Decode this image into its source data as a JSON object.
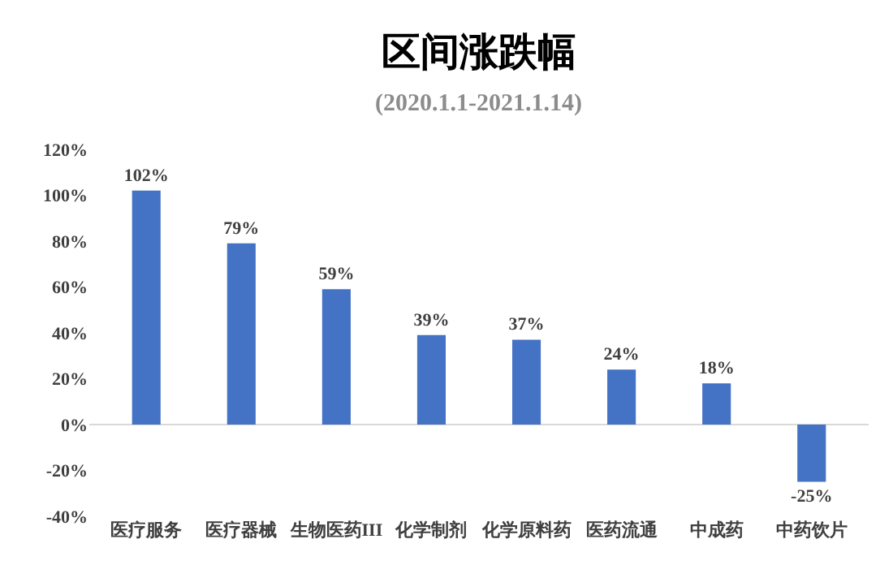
{
  "chart_data": {
    "type": "bar",
    "title": "区间涨跌幅",
    "subtitle": "(2020.1.1-2021.1.14)",
    "categories": [
      "医疗服务",
      "医疗器械",
      "生物医药III",
      "化学制剂",
      "化学原料药",
      "医药流通",
      "中成药",
      "中药饮片"
    ],
    "values": [
      102,
      79,
      59,
      39,
      37,
      24,
      18,
      -25
    ],
    "value_labels": [
      "102%",
      "79%",
      "59%",
      "39%",
      "37%",
      "24%",
      "18%",
      "-25%"
    ],
    "color": "#4472c4",
    "ylim": [
      -40,
      120
    ],
    "yticks": [
      {
        "value": -40,
        "label": "-40%"
      },
      {
        "value": -20,
        "label": "-20%"
      },
      {
        "value": 0,
        "label": "0%"
      },
      {
        "value": 20,
        "label": "20%"
      },
      {
        "value": 40,
        "label": "40%"
      },
      {
        "value": 60,
        "label": "60%"
      },
      {
        "value": 80,
        "label": "80%"
      },
      {
        "value": 100,
        "label": "100%"
      },
      {
        "value": 120,
        "label": "120%"
      }
    ],
    "ref_lines": [
      {
        "axis": "y",
        "value": 0,
        "color": "#d9d9d9"
      }
    ],
    "legend": false
  }
}
